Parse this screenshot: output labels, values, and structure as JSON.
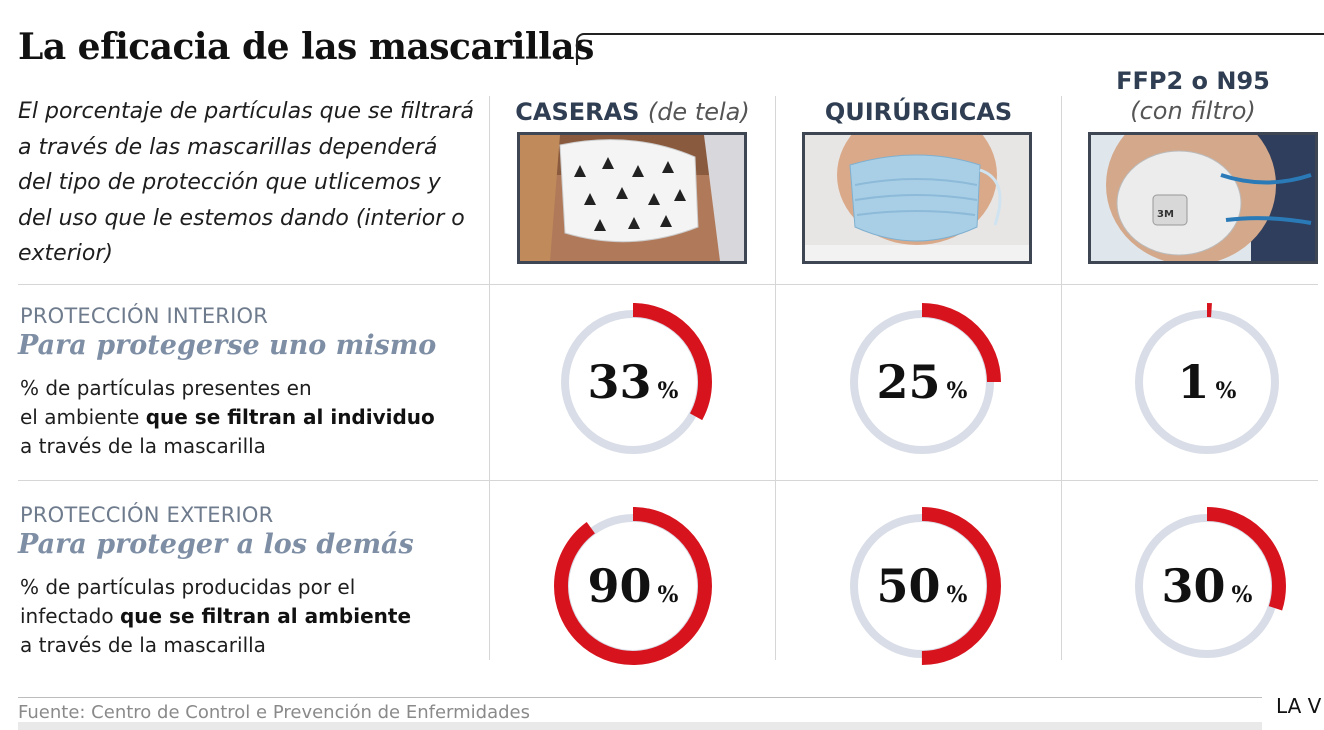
{
  "title": "La eficacia de las mascarillas",
  "intro": "El porcentaje de partículas que se filtrará a través de las mascarillas dependerá del tipo de protección que utlicemos y del uso que le estemos dando (interior o exterior)",
  "columns": [
    {
      "name": "CASERAS",
      "sub": "(de tela)"
    },
    {
      "name": "QUIRÚRGICAS",
      "sub": ""
    },
    {
      "name": "FFP2 o N95",
      "sub": "(con filtro)"
    }
  ],
  "sections": [
    {
      "kicker": "PROTECCIÓN INTERIOR",
      "title": "Para protegerse uno mismo",
      "desc_1": "% de partículas presentes en",
      "desc_2a": "el ambiente ",
      "desc_2b": "que se filtran al individuo",
      "desc_3": "a través de la mascarilla"
    },
    {
      "kicker": "PROTECCIÓN EXTERIOR",
      "title": "Para proteger a los demás",
      "desc_1": "% de partículas producidas por el",
      "desc_2a": "infectado ",
      "desc_2b": "que se filtran al ambiente",
      "desc_3": "a través de la mascarilla"
    }
  ],
  "chart_data": {
    "type": "pie",
    "unit": "%",
    "categories": [
      "CASERAS (de tela)",
      "QUIRÚRGICAS",
      "FFP2 o N95 (con filtro)"
    ],
    "series": [
      {
        "name": "PROTECCIÓN INTERIOR",
        "values": [
          33,
          25,
          1
        ]
      },
      {
        "name": "PROTECCIÓN EXTERIOR",
        "values": [
          90,
          50,
          30
        ]
      }
    ]
  },
  "colors": {
    "filled": "#d7141e",
    "track": "#d9dde7"
  },
  "source": "Fuente: Centro de Control e Prevención de Enfermidades",
  "brand": "LA V"
}
